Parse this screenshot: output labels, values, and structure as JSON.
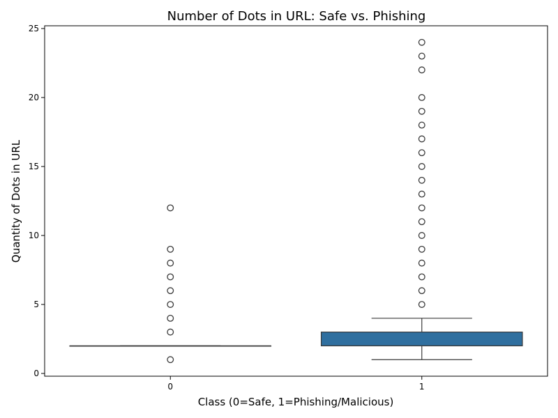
{
  "chart_data": {
    "type": "box",
    "title": "Number of Dots in URL: Safe vs. Phishing",
    "xlabel": "Class (0=Safe, 1=Phishing/Malicious)",
    "ylabel": "Quantity of Dots in URL",
    "categories": [
      "0",
      "1"
    ],
    "ylim": [
      -0.2,
      25.2
    ],
    "yticks": [
      0,
      5,
      10,
      15,
      20,
      25
    ],
    "grid": false,
    "colors": {
      "box": "#2f6f9f",
      "line": "#3a3a3a"
    },
    "boxes": [
      {
        "category": "0",
        "whisker_low": 2,
        "q1": 2,
        "median": 2,
        "q3": 2,
        "whisker_high": 2,
        "outliers": [
          1,
          3,
          4,
          5,
          6,
          7,
          8,
          9,
          12
        ]
      },
      {
        "category": "1",
        "whisker_low": 1,
        "q1": 2,
        "median": 2,
        "q3": 3,
        "whisker_high": 4,
        "outliers": [
          5,
          6,
          7,
          8,
          9,
          10,
          11,
          12,
          13,
          14,
          15,
          16,
          17,
          18,
          19,
          20,
          22,
          23,
          24
        ]
      }
    ]
  }
}
